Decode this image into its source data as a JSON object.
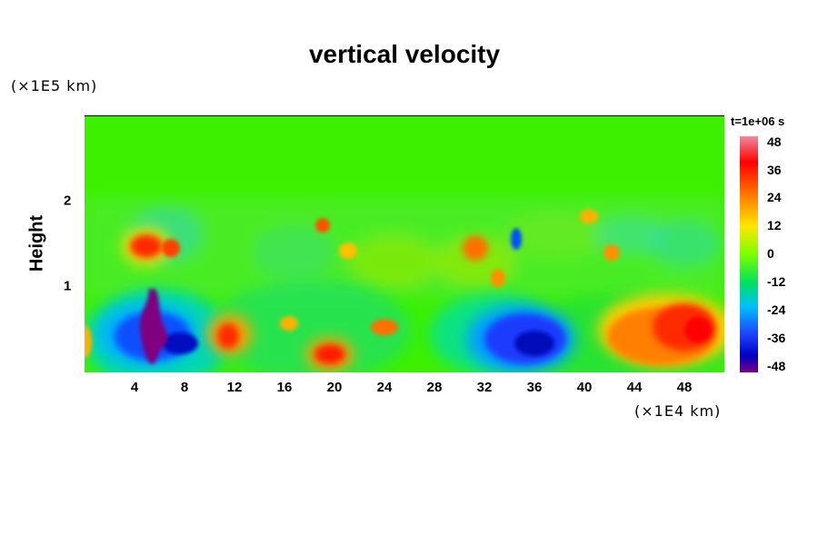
{
  "chart_data": {
    "type": "heatmap",
    "title": "vertical velocity",
    "ylabel": "Height",
    "y_unit": "(×1E5 km)",
    "x_unit": "(×1E4 km)",
    "x_ticks": [
      "4",
      "8",
      "12",
      "16",
      "20",
      "24",
      "28",
      "32",
      "36",
      "40",
      "44",
      "48"
    ],
    "y_ticks": [
      "1",
      "2"
    ],
    "xlim": [
      0,
      51.2
    ],
    "ylim": [
      0,
      3
    ],
    "colorbar": {
      "title": "t=1e+06 s",
      "labels": [
        "48",
        "36",
        "24",
        "12",
        "0",
        "-12",
        "-24",
        "-36",
        "-48"
      ],
      "range": [
        -48,
        48
      ],
      "colors": [
        "#f08aa0",
        "#ff0000",
        "#ff7a00",
        "#ffe600",
        "#7aff00",
        "#00e060",
        "#00c0ff",
        "#2040ff",
        "#0000c0",
        "#800080"
      ]
    },
    "features": [
      {
        "x": 5.5,
        "y": 0.55,
        "value": -48
      },
      {
        "x": 4.3,
        "y": 0.45,
        "value": -40
      },
      {
        "x": 5.0,
        "y": 1.5,
        "value": 38
      },
      {
        "x": 10.5,
        "y": 0.4,
        "value": 30
      },
      {
        "x": 19.5,
        "y": 0.2,
        "value": 40
      },
      {
        "x": 24.0,
        "y": 0.5,
        "value": 28
      },
      {
        "x": 35.0,
        "y": 0.5,
        "value": -38
      },
      {
        "x": 49.0,
        "y": 0.55,
        "value": 42
      },
      {
        "x": 44.5,
        "y": 0.4,
        "value": 30
      },
      {
        "x": 31.5,
        "y": 1.45,
        "value": 28
      }
    ]
  }
}
